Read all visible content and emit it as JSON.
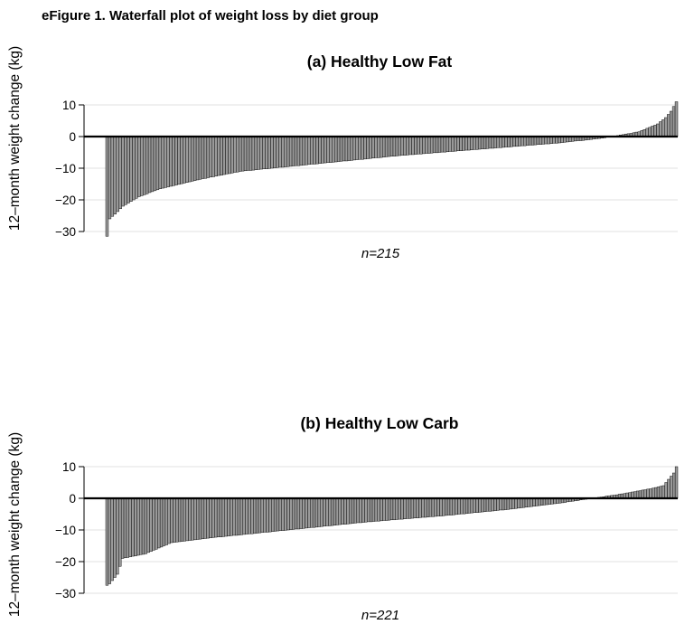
{
  "figure_title": "eFigure 1. Waterfall plot of weight loss by diet group",
  "chart_data": [
    {
      "type": "bar",
      "variant": "waterfall",
      "title": "(a) Healthy Low Fat",
      "ylabel": "12–month weight change (kg)",
      "xlabel": "",
      "n_label": "n=215",
      "n": 215,
      "ylim": [
        -30,
        10
      ],
      "yticks": [
        10,
        0,
        -10,
        -20,
        -30
      ],
      "ytick_labels": [
        "10",
        "0",
        "−10",
        "−20",
        "−30"
      ],
      "grid": true,
      "bar_color": "#9a9a9a",
      "values_shape": {
        "min": -31.5,
        "max": 11,
        "anchors": [
          [
            0,
            -31.5
          ],
          [
            1,
            -26
          ],
          [
            3,
            -24.5
          ],
          [
            6,
            -22
          ],
          [
            12,
            -19
          ],
          [
            20,
            -16.5
          ],
          [
            35,
            -13.5
          ],
          [
            50,
            -11
          ],
          [
            80,
            -8.5
          ],
          [
            110,
            -6
          ],
          [
            140,
            -4
          ],
          [
            170,
            -2
          ],
          [
            185,
            -0.6
          ],
          [
            190,
            0
          ],
          [
            200,
            1.5
          ],
          [
            207,
            4
          ],
          [
            210,
            6
          ],
          [
            212,
            8
          ],
          [
            214,
            11
          ]
        ]
      }
    },
    {
      "type": "bar",
      "variant": "waterfall",
      "title": "(b) Healthy Low Carb",
      "ylabel": "12–month weight change (kg)",
      "xlabel": "",
      "n_label": "n=221",
      "n": 221,
      "ylim": [
        -30,
        10
      ],
      "yticks": [
        10,
        0,
        -10,
        -20,
        -30
      ],
      "ytick_labels": [
        "10",
        "0",
        "−10",
        "−20",
        "−30"
      ],
      "grid": true,
      "bar_color": "#9a9a9a",
      "values_shape": {
        "min": -27.5,
        "max": 10,
        "anchors": [
          [
            0,
            -27.5
          ],
          [
            1,
            -27
          ],
          [
            2,
            -26
          ],
          [
            4,
            -24
          ],
          [
            6,
            -19
          ],
          [
            15,
            -17.5
          ],
          [
            25,
            -14
          ],
          [
            40,
            -12.5
          ],
          [
            70,
            -10
          ],
          [
            100,
            -7.5
          ],
          [
            130,
            -5.5
          ],
          [
            155,
            -3.5
          ],
          [
            175,
            -1.5
          ],
          [
            185,
            -0.3
          ],
          [
            190,
            0.3
          ],
          [
            200,
            1.5
          ],
          [
            210,
            3
          ],
          [
            215,
            4
          ],
          [
            217,
            6
          ],
          [
            219,
            8
          ],
          [
            220,
            10
          ]
        ]
      }
    }
  ]
}
